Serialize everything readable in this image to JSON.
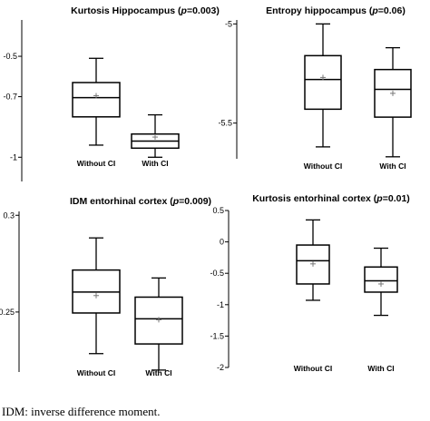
{
  "footnote": "IDM: inverse difference moment.",
  "chart_data": [
    {
      "type": "box",
      "title_pre": "Kurtosis Hippocampus (",
      "title_p": "p",
      "title_post": "=0.003)",
      "y_ticks": [
        -0.5,
        -0.7,
        -1
      ],
      "ylim": [
        -1.12,
        -0.32
      ],
      "categories": [
        "Without CI",
        "With CI"
      ],
      "boxes": [
        {
          "min": -0.94,
          "q1": -0.8,
          "median": -0.705,
          "q3": -0.63,
          "max": -0.51,
          "mean": -0.695
        },
        {
          "min": -1.0,
          "q1": -0.955,
          "median": -0.92,
          "q3": -0.885,
          "max": -0.79,
          "mean": -0.9
        }
      ]
    },
    {
      "type": "box",
      "title_pre": "Entropy hippocampus (",
      "title_p": "p",
      "title_post": "=0.06)",
      "y_ticks": [
        -5,
        -5.5
      ],
      "ylim": [
        -5.68,
        -4.98
      ],
      "categories": [
        "Without CI",
        "With CI"
      ],
      "boxes": [
        {
          "min": -5.62,
          "q1": -5.43,
          "median": -5.28,
          "q3": -5.16,
          "max": -5.0,
          "mean": -5.27
        },
        {
          "min": -5.67,
          "q1": -5.47,
          "median": -5.33,
          "q3": -5.23,
          "max": -5.12,
          "mean": -5.35
        }
      ]
    },
    {
      "type": "box",
      "title_pre": "IDM entorhinal cortex (",
      "title_p": "p",
      "title_post": "=0.009)",
      "y_ticks": [
        0.3,
        0.25
      ],
      "ylim": [
        0.219,
        0.302
      ],
      "categories": [
        "Without CI",
        "With CI"
      ],
      "boxes": [
        {
          "min": 0.2285,
          "q1": 0.2495,
          "median": 0.2603,
          "q3": 0.2717,
          "max": 0.2883,
          "mean": 0.2585
        },
        {
          "min": 0.22,
          "q1": 0.2335,
          "median": 0.2465,
          "q3": 0.2577,
          "max": 0.2676,
          "mean": 0.246
        }
      ]
    },
    {
      "type": "box",
      "title_pre": "Kurtosis entorhinal cortex (",
      "title_p": "p",
      "title_post": "=0.01)",
      "y_ticks": [
        0.5,
        0,
        -0.5,
        -1,
        -1.5,
        -2
      ],
      "ylim": [
        -2,
        0.5
      ],
      "categories": [
        "Without CI",
        "With CI"
      ],
      "boxes": [
        {
          "min": -0.93,
          "q1": -0.67,
          "median": -0.3,
          "q3": -0.05,
          "max": 0.35,
          "mean": -0.35
        },
        {
          "min": -1.17,
          "q1": -0.8,
          "median": -0.62,
          "q3": -0.4,
          "max": -0.1,
          "mean": -0.67
        }
      ]
    }
  ]
}
